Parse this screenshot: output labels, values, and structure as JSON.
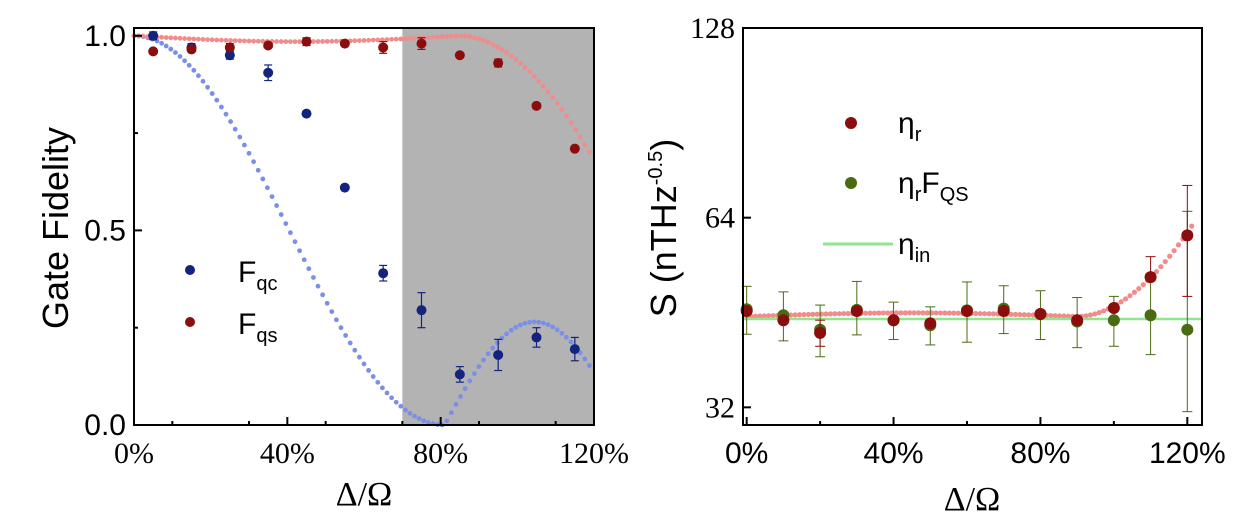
{
  "chart_data": [
    {
      "type": "scatter",
      "xlabel": "Δ/Ω",
      "ylabel": "Gate Fidelity",
      "xlim": [
        0,
        120
      ],
      "ylim": [
        0,
        1.02
      ],
      "x_ticks": [
        "0%",
        "40%",
        "80%",
        "120%"
      ],
      "x_tick_values": [
        0,
        40,
        80,
        120
      ],
      "y_ticks": [
        "0.0",
        "0.5",
        "1.0"
      ],
      "y_tick_values": [
        0,
        0.5,
        1.0
      ],
      "shaded_region": {
        "x": [
          70,
          120
        ],
        "color": "#b3b3b3"
      },
      "legend": {
        "placement": "lower-left"
      },
      "series": [
        {
          "name": "F",
          "sub": "qc",
          "color": "#13237e",
          "fit_color": "#7b8fe6",
          "fit": "qc",
          "points": [
            {
              "x": 5,
              "y": 1.0,
              "err": 0.01
            },
            {
              "x": 15,
              "y": 0.97,
              "err": 0.01
            },
            {
              "x": 25,
              "y": 0.95,
              "err": 0.01
            },
            {
              "x": 35,
              "y": 0.905,
              "err": 0.02
            },
            {
              "x": 45,
              "y": 0.8,
              "err": 0.0
            },
            {
              "x": 55,
              "y": 0.61,
              "err": 0.0
            },
            {
              "x": 65,
              "y": 0.39,
              "err": 0.02
            },
            {
              "x": 75,
              "y": 0.295,
              "err": 0.045
            },
            {
              "x": 85,
              "y": 0.13,
              "err": 0.02
            },
            {
              "x": 95,
              "y": 0.18,
              "err": 0.04
            },
            {
              "x": 105,
              "y": 0.225,
              "err": 0.025
            },
            {
              "x": 115,
              "y": 0.195,
              "err": 0.03
            }
          ]
        },
        {
          "name": "F",
          "sub": "qs",
          "color": "#8b0d0d",
          "fit_color": "#f08c8c",
          "fit": "qs",
          "points": [
            {
              "x": 5,
              "y": 0.96,
              "err": 0.0
            },
            {
              "x": 15,
              "y": 0.965,
              "err": 0.0
            },
            {
              "x": 25,
              "y": 0.97,
              "err": 0.01
            },
            {
              "x": 35,
              "y": 0.975,
              "err": 0.0
            },
            {
              "x": 45,
              "y": 0.985,
              "err": 0.01
            },
            {
              "x": 55,
              "y": 0.98,
              "err": 0.0
            },
            {
              "x": 65,
              "y": 0.97,
              "err": 0.015
            },
            {
              "x": 75,
              "y": 0.98,
              "err": 0.015
            },
            {
              "x": 85,
              "y": 0.95,
              "err": 0.0
            },
            {
              "x": 95,
              "y": 0.93,
              "err": 0.01
            },
            {
              "x": 105,
              "y": 0.82,
              "err": 0.0
            },
            {
              "x": 115,
              "y": 0.71,
              "err": 0.0
            }
          ]
        }
      ]
    },
    {
      "type": "scatter",
      "xlabel": "Δ/Ω",
      "ylabel": "S (nTHz",
      "ylabel_sup": "-0.5",
      "ylabel_end": ")",
      "y_scale": "log2",
      "xlim": [
        -1,
        124
      ],
      "ylim": [
        30,
        128
      ],
      "x_ticks": [
        "0%",
        "40%",
        "80%",
        "120%"
      ],
      "x_tick_values": [
        0,
        40,
        80,
        120
      ],
      "y_ticks": [
        "32",
        "64",
        "128"
      ],
      "y_tick_values": [
        32,
        64,
        128
      ],
      "legend": {
        "placement": "upper-left"
      },
      "series": [
        {
          "name": "η",
          "sub": "r",
          "sub2": "",
          "color": "#8b0d0d",
          "fit_color": "#f08c8c",
          "fit": "eta_r",
          "points": [
            {
              "x": 0,
              "y": 45.5,
              "err_lo": 0,
              "err_hi": 0
            },
            {
              "x": 10,
              "y": 44.0,
              "err_lo": 0,
              "err_hi": 0
            },
            {
              "x": 20,
              "y": 42.0,
              "err_lo": 2,
              "err_hi": 2
            },
            {
              "x": 30,
              "y": 45.5,
              "err_lo": 0,
              "err_hi": 0
            },
            {
              "x": 40,
              "y": 44.0,
              "err_lo": 0,
              "err_hi": 0
            },
            {
              "x": 50,
              "y": 43.5,
              "err_lo": 0,
              "err_hi": 0
            },
            {
              "x": 60,
              "y": 45.5,
              "err_lo": 0,
              "err_hi": 0
            },
            {
              "x": 70,
              "y": 45.5,
              "err_lo": 0,
              "err_hi": 0
            },
            {
              "x": 80,
              "y": 45.0,
              "err_lo": 0,
              "err_hi": 0
            },
            {
              "x": 90,
              "y": 44.0,
              "err_lo": 0,
              "err_hi": 0
            },
            {
              "x": 100,
              "y": 46.0,
              "err_lo": 0,
              "err_hi": 0
            },
            {
              "x": 110,
              "y": 51.5,
              "err_lo": 0,
              "err_hi": 4
            },
            {
              "x": 120,
              "y": 60.0,
              "err_lo": 12,
              "err_hi": 12
            }
          ]
        },
        {
          "name": "η",
          "sub": "r",
          "sub2": "QS",
          "color": "#4a6b12",
          "fit_color": "",
          "fit": "",
          "points": [
            {
              "x": 0,
              "y": 45.8,
              "err_lo": 4,
              "err_hi": 4
            },
            {
              "x": 10,
              "y": 44.8,
              "err_lo": 4,
              "err_hi": 4
            },
            {
              "x": 20,
              "y": 42.5,
              "err_lo": 4,
              "err_hi": 4
            },
            {
              "x": 30,
              "y": 45.7,
              "err_lo": 4,
              "err_hi": 5
            },
            {
              "x": 40,
              "y": 44.0,
              "err_lo": 3,
              "err_hi": 3
            },
            {
              "x": 50,
              "y": 43.2,
              "err_lo": 3,
              "err_hi": 3
            },
            {
              "x": 60,
              "y": 45.6,
              "err_lo": 5,
              "err_hi": 5
            },
            {
              "x": 70,
              "y": 45.9,
              "err_lo": 4,
              "err_hi": 4
            },
            {
              "x": 80,
              "y": 45.0,
              "err_lo": 4,
              "err_hi": 4
            },
            {
              "x": 90,
              "y": 43.8,
              "err_lo": 4,
              "err_hi": 4
            },
            {
              "x": 100,
              "y": 44.0,
              "err_lo": 4,
              "err_hi": 4
            },
            {
              "x": 110,
              "y": 44.8,
              "err_lo": 6,
              "err_hi": 6
            },
            {
              "x": 120,
              "y": 42.5,
              "err_lo": 11,
              "err_hi": 23
            }
          ]
        },
        {
          "name": "η",
          "sub": "in",
          "sub2": "",
          "color": "#8fe68f",
          "line": true,
          "value": 44.2
        }
      ]
    }
  ]
}
